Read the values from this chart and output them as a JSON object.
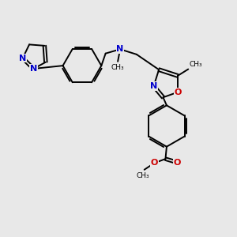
{
  "bg_color": "#e8e8e8",
  "bond_color": "#000000",
  "N_color": "#0000cc",
  "O_color": "#cc0000",
  "line_width": 1.4,
  "figsize": [
    3.0,
    3.0
  ],
  "dpi": 100,
  "xlim": [
    0,
    10
  ],
  "ylim": [
    0,
    10
  ]
}
